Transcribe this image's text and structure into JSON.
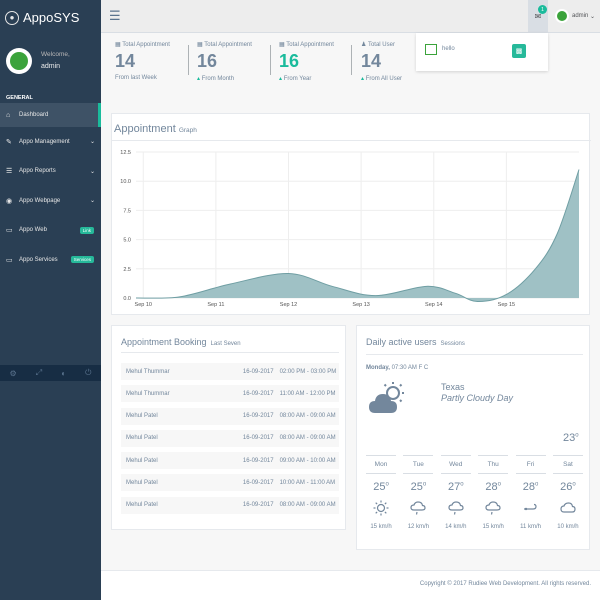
{
  "brand": {
    "name": "AppoSYS"
  },
  "profile": {
    "welcome": "Welcome,",
    "username": "admin"
  },
  "sidebar": {
    "section": "GENERAL",
    "items": [
      {
        "label": "Dashboard",
        "icon": "home-icon"
      },
      {
        "label": "Appo Management",
        "icon": "edit-icon"
      },
      {
        "label": "Appo Reports",
        "icon": "table-icon"
      },
      {
        "label": "Appo Webpage",
        "icon": "globe-icon"
      },
      {
        "label": "Appo Web",
        "icon": "laptop-icon",
        "badge": "Link"
      },
      {
        "label": "Appo Services",
        "icon": "laptop-icon",
        "badge": "Services"
      }
    ]
  },
  "topbar": {
    "mail_count": "1",
    "user": "admin"
  },
  "notification": {
    "text": "hello"
  },
  "stats": [
    {
      "label": "Total Appointment",
      "count": "14",
      "sub": "From last Week"
    },
    {
      "label": "Total Appointment",
      "count": "16",
      "sub": "From Month"
    },
    {
      "label": "Total Appointment",
      "count": "16",
      "sub": "From Year"
    },
    {
      "label": "Total User",
      "count": "14",
      "sub": "From All User"
    }
  ],
  "graph": {
    "title": "Appointment",
    "subtitle": "Graph"
  },
  "chart_data": {
    "type": "area",
    "x": [
      "Sep 10",
      "Sep 11",
      "Sep 12",
      "Sep 13",
      "Sep 14",
      "Sep 15"
    ],
    "ylim": [
      0,
      12.5
    ],
    "yticks": [
      "0.0",
      "2.5",
      "5.0",
      "7.5",
      "10.0",
      "12.5"
    ],
    "xlim": [
      9.9,
      16.0
    ],
    "points": [
      [
        9.9,
        0
      ],
      [
        10.5,
        0.1
      ],
      [
        11.2,
        1.2
      ],
      [
        12.0,
        2.1
      ],
      [
        12.6,
        1.0
      ],
      [
        13.2,
        0.2
      ],
      [
        13.9,
        1.0
      ],
      [
        14.3,
        0.4
      ],
      [
        14.6,
        -0.3
      ],
      [
        15.0,
        0.3
      ],
      [
        15.4,
        2.5
      ],
      [
        15.7,
        5.5
      ],
      [
        16.0,
        11.0
      ]
    ],
    "color": "#9fc1c5",
    "grid": true
  },
  "booking": {
    "title": "Appointment Booking",
    "subtitle": "Last Seven",
    "rows": [
      {
        "name": "Mehul Thummar",
        "date": "16-09-2017",
        "time": "02:00 PM - 03:00 PM"
      },
      {
        "name": "Mehul Thummar",
        "date": "16-09-2017",
        "time": "11:00 AM - 12:00 PM"
      },
      {
        "name": "Mehul Patel",
        "date": "16-09-2017",
        "time": "08:00 AM - 09:00 AM"
      },
      {
        "name": "Mehul Patel",
        "date": "16-09-2017",
        "time": "08:00 AM - 09:00 AM"
      },
      {
        "name": "Mehul Patel",
        "date": "16-09-2017",
        "time": "09:00 AM - 10:00 AM"
      },
      {
        "name": "Mehul Patel",
        "date": "16-09-2017",
        "time": "10:00 AM - 11:00 AM"
      },
      {
        "name": "Mehul Patel",
        "date": "16-09-2017",
        "time": "08:00 AM - 09:00 AM"
      }
    ]
  },
  "weather": {
    "title": "Daily active users",
    "subtitle": "Sessions",
    "day": "Monday,",
    "time": "07:30 AM F C",
    "place": "Texas",
    "condition": "Partly Cloudy Day",
    "temp": "23",
    "days": [
      {
        "name": "Mon",
        "temp": "25",
        "icon": "sun-icon",
        "wind": "15 km/h"
      },
      {
        "name": "Tue",
        "temp": "25",
        "icon": "cloud-rain-icon",
        "wind": "12 km/h"
      },
      {
        "name": "Wed",
        "temp": "27",
        "icon": "cloud-rain-icon",
        "wind": "14 km/h"
      },
      {
        "name": "Thu",
        "temp": "28",
        "icon": "cloud-rain-icon",
        "wind": "15 km/h"
      },
      {
        "name": "Fri",
        "temp": "28",
        "icon": "wind-icon",
        "wind": "11 km/h"
      },
      {
        "name": "Sat",
        "temp": "26",
        "icon": "cloud-icon",
        "wind": "10 km/h"
      }
    ]
  },
  "footer": {
    "text": "Copyright © 2017 Rudiee Web Development. All rights reserved."
  }
}
